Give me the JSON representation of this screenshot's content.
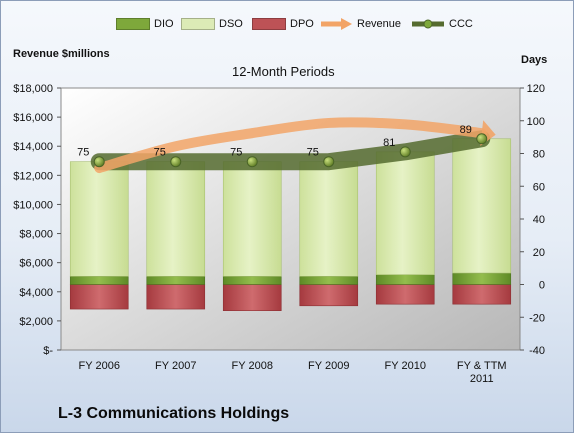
{
  "chart_data": {
    "type": "bar",
    "title": "12-Month Periods",
    "footer_title": "L-3 Communications Holdings",
    "left_axis_label": "Revenue $millions",
    "right_axis_label": "Days",
    "categories": [
      "FY 2006",
      "FY 2007",
      "FY 2008",
      "FY 2009",
      "FY 2010",
      "FY & TTM 2011"
    ],
    "days_series": [
      {
        "name": "DIO",
        "values": [
          5,
          5,
          5,
          5,
          6,
          7
        ],
        "color": "#6f9a2f"
      },
      {
        "name": "DSO",
        "values": [
          70,
          70,
          70,
          70,
          75,
          82
        ],
        "color": "#d5e7a7"
      },
      {
        "name": "DPO",
        "values": [
          -15,
          -15,
          -16,
          -13,
          -12,
          -12
        ],
        "color": "#b6454a"
      }
    ],
    "revenue_series": {
      "name": "Revenue",
      "values": [
        12500,
        14000,
        14900,
        15600,
        15500,
        14900
      ],
      "color": "#f2a467"
    },
    "ccc_series": {
      "name": "CCC",
      "values": [
        75,
        75,
        75,
        75,
        81,
        89
      ],
      "color": "#556b2f"
    },
    "left_axis": {
      "ylim": [
        0,
        18000
      ],
      "ticks": [
        "$-",
        "$2,000",
        "$4,000",
        "$6,000",
        "$8,000",
        "$10,000",
        "$12,000",
        "$14,000",
        "$16,000",
        "$18,000"
      ]
    },
    "right_axis": {
      "ylim": [
        -40,
        120
      ],
      "ticks": [
        "-40",
        "-20",
        "0",
        "20",
        "40",
        "60",
        "80",
        "100",
        "120"
      ]
    },
    "legend": [
      "DIO",
      "DSO",
      "DPO",
      "Revenue",
      "CCC"
    ],
    "legend_position": "top"
  }
}
